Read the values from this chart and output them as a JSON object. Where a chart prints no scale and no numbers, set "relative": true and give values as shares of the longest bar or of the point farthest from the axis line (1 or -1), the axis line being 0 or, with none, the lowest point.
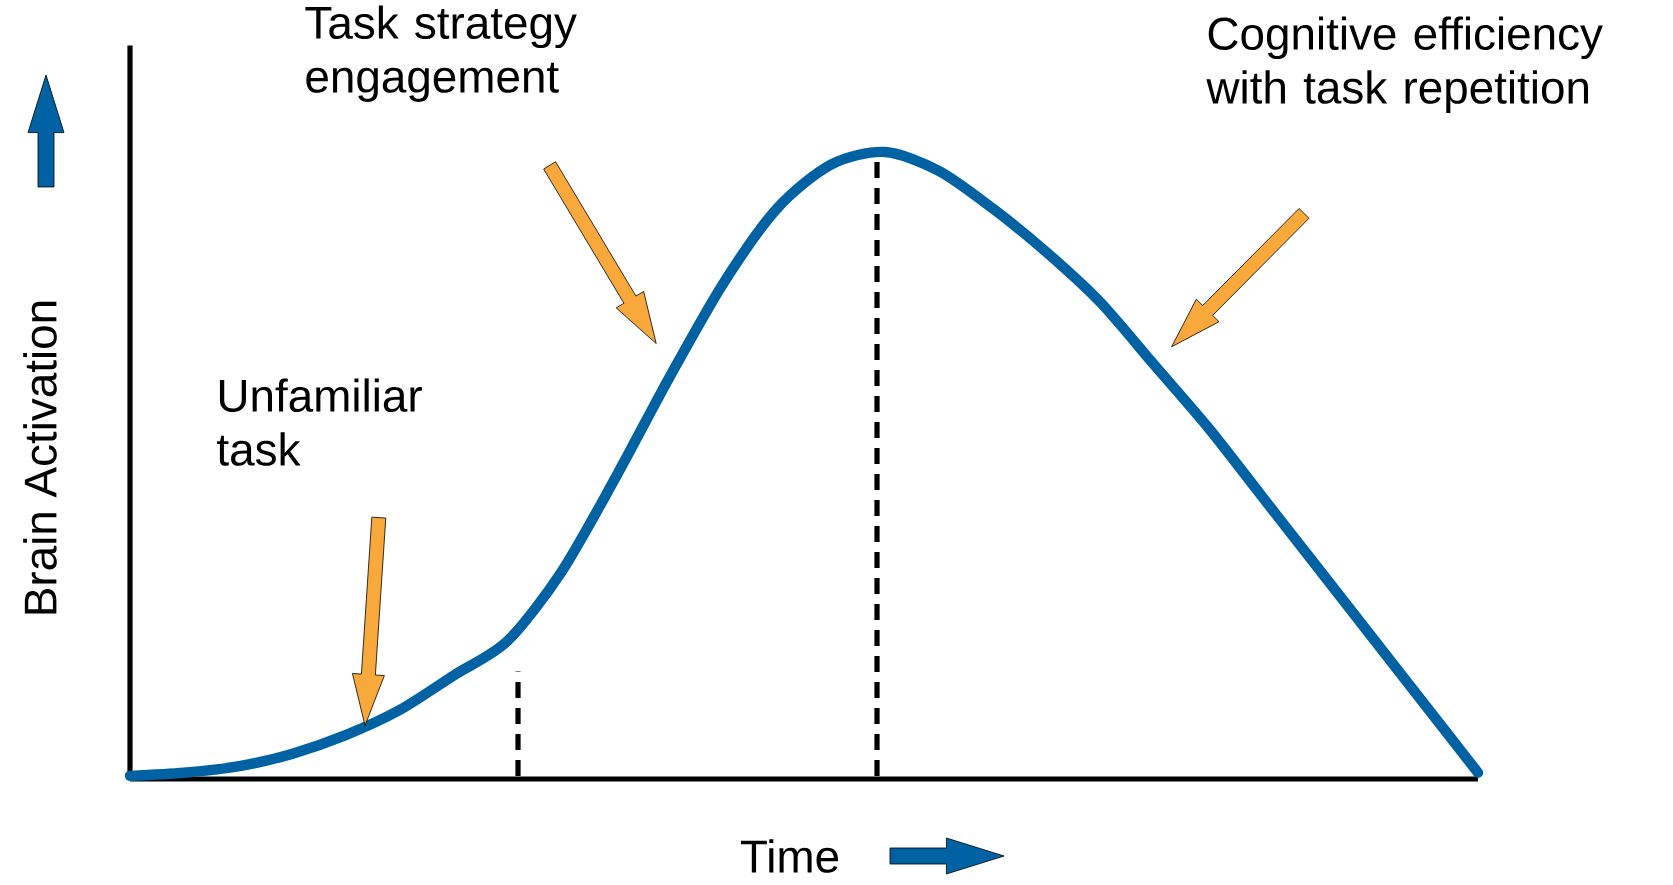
{
  "chart_data": {
    "type": "line",
    "relative": true,
    "xlabel": "Time",
    "ylabel": "Brain Activation",
    "categories": [
      null,
      null,
      null,
      null,
      null,
      null,
      null,
      null,
      null,
      null,
      null,
      null,
      null,
      null,
      null,
      null,
      null,
      null,
      null,
      null,
      null,
      null,
      null,
      null,
      null,
      null
    ],
    "values": [
      0.005,
      0.01,
      0.02,
      0.04,
      0.07,
      0.11,
      0.165,
      0.22,
      0.33,
      0.48,
      0.64,
      0.79,
      0.91,
      0.98,
      1.0,
      0.97,
      0.91,
      0.84,
      0.76,
      0.66,
      0.56,
      0.45,
      0.34,
      0.23,
      0.12,
      0.01
    ],
    "color": "#0062a3",
    "line_style": "solid",
    "marker": "none",
    "annotations": [
      "Unfamiliar task",
      "Task strategy engagement",
      "Cognitive efficiency with task repetition"
    ]
  }
}
